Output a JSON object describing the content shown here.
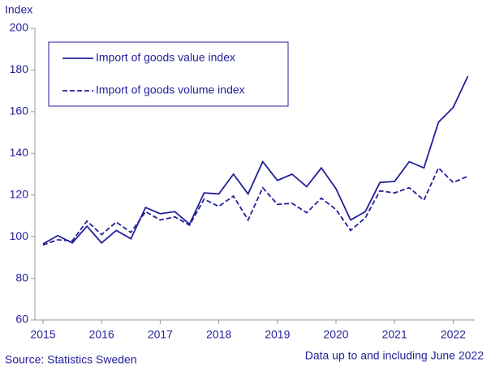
{
  "chart_data": {
    "type": "line",
    "y_label": "Index",
    "categories": [
      "2015",
      null,
      null,
      null,
      "2016",
      null,
      null,
      null,
      "2017",
      null,
      null,
      null,
      "2018",
      null,
      null,
      null,
      "2019",
      null,
      null,
      null,
      "2020",
      null,
      null,
      null,
      "2021",
      null,
      null,
      null,
      "2022",
      null
    ],
    "series": [
      {
        "name": "Import of goods value index",
        "color": "#231f9a",
        "style": "solid",
        "values": [
          96.5,
          100.5,
          97,
          105,
          97,
          103,
          99,
          114,
          111,
          112,
          106,
          121,
          120.5,
          130,
          120.5,
          136,
          127,
          130,
          124,
          133,
          123,
          108,
          112,
          126,
          126.5,
          136,
          133,
          155,
          162,
          177
        ]
      },
      {
        "name": "Import of goods volume index",
        "color": "#231f9a",
        "style": "dashed",
        "values": [
          96,
          98.5,
          98,
          107.5,
          101,
          107,
          102,
          112,
          108,
          109.5,
          105.5,
          118,
          114.5,
          119.5,
          108,
          123.5,
          115.5,
          116,
          111.5,
          118.5,
          113,
          103,
          109,
          122,
          121,
          123.5,
          117.5,
          133,
          126,
          129
        ]
      }
    ],
    "ylim": [
      60,
      200
    ],
    "yticks": [
      60,
      80,
      100,
      120,
      140,
      160,
      180,
      200
    ],
    "legend": "top-left",
    "source": "Source: Statistics Sweden",
    "note": "Data up to and including June 2022"
  }
}
